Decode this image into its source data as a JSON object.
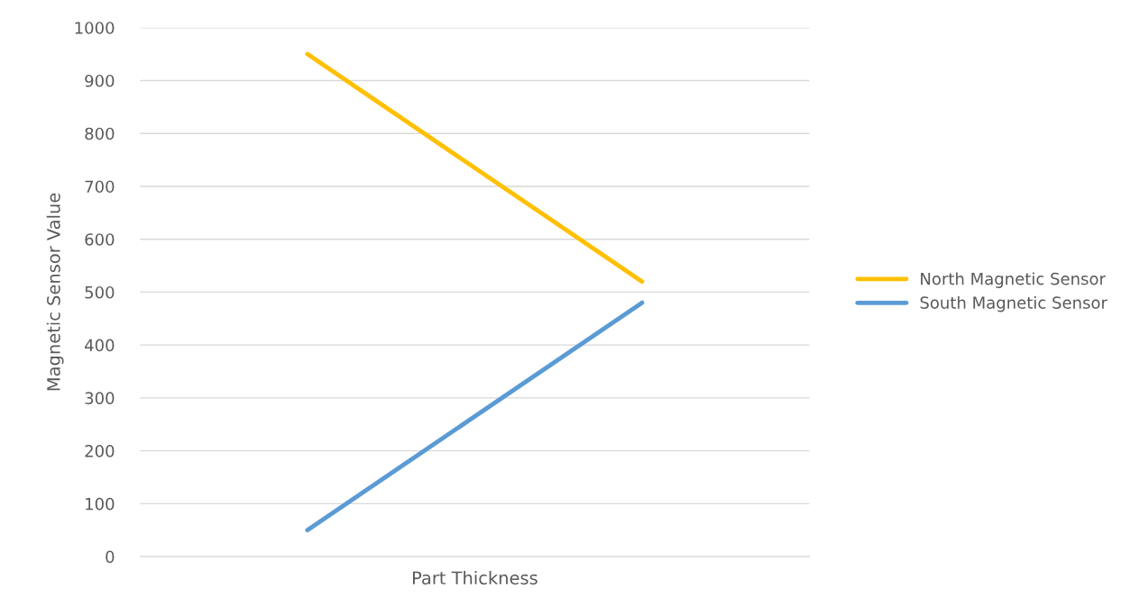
{
  "chart_data": {
    "type": "line",
    "xlabel": "Part Thickness",
    "ylabel": "Magnetic Sensor Value",
    "categories": [
      null,
      null
    ],
    "series": [
      {
        "name": "North Magnetic Sensor",
        "color": "#ffc000",
        "values": [
          950,
          520
        ]
      },
      {
        "name": "South Magnetic Sensor",
        "color": "#5b9bd5",
        "values": [
          50,
          480
        ]
      }
    ],
    "ylim": [
      0,
      1000
    ],
    "yticks": [
      0,
      100,
      200,
      300,
      400,
      500,
      600,
      700,
      800,
      900,
      1000
    ],
    "grid": "y",
    "legend": "right",
    "marker": "none",
    "line_style": "solid"
  }
}
